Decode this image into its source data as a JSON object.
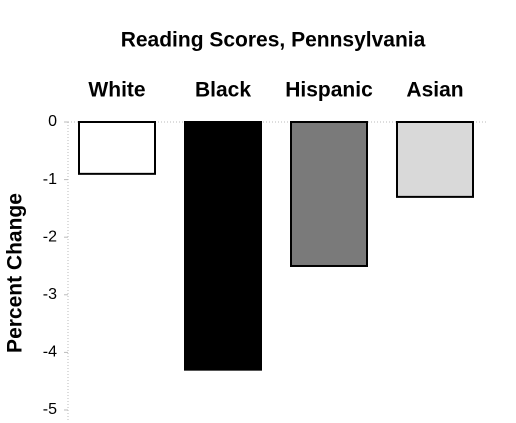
{
  "chart_data": {
    "type": "bar",
    "title": "Reading Scores, Pennsylvania",
    "y_label": "Percent Change",
    "categories": [
      "White",
      "Black",
      "Hispanic",
      "Asian"
    ],
    "values": [
      -0.9,
      -4.3,
      -2.5,
      -1.3
    ],
    "colors": [
      "#ffffff",
      "#000000",
      "#7a7a7a",
      "#d9d9d9"
    ],
    "ylim": [
      -5.2,
      0
    ],
    "yticks": [
      0,
      -1,
      -2,
      -3,
      -4,
      -5
    ]
  }
}
